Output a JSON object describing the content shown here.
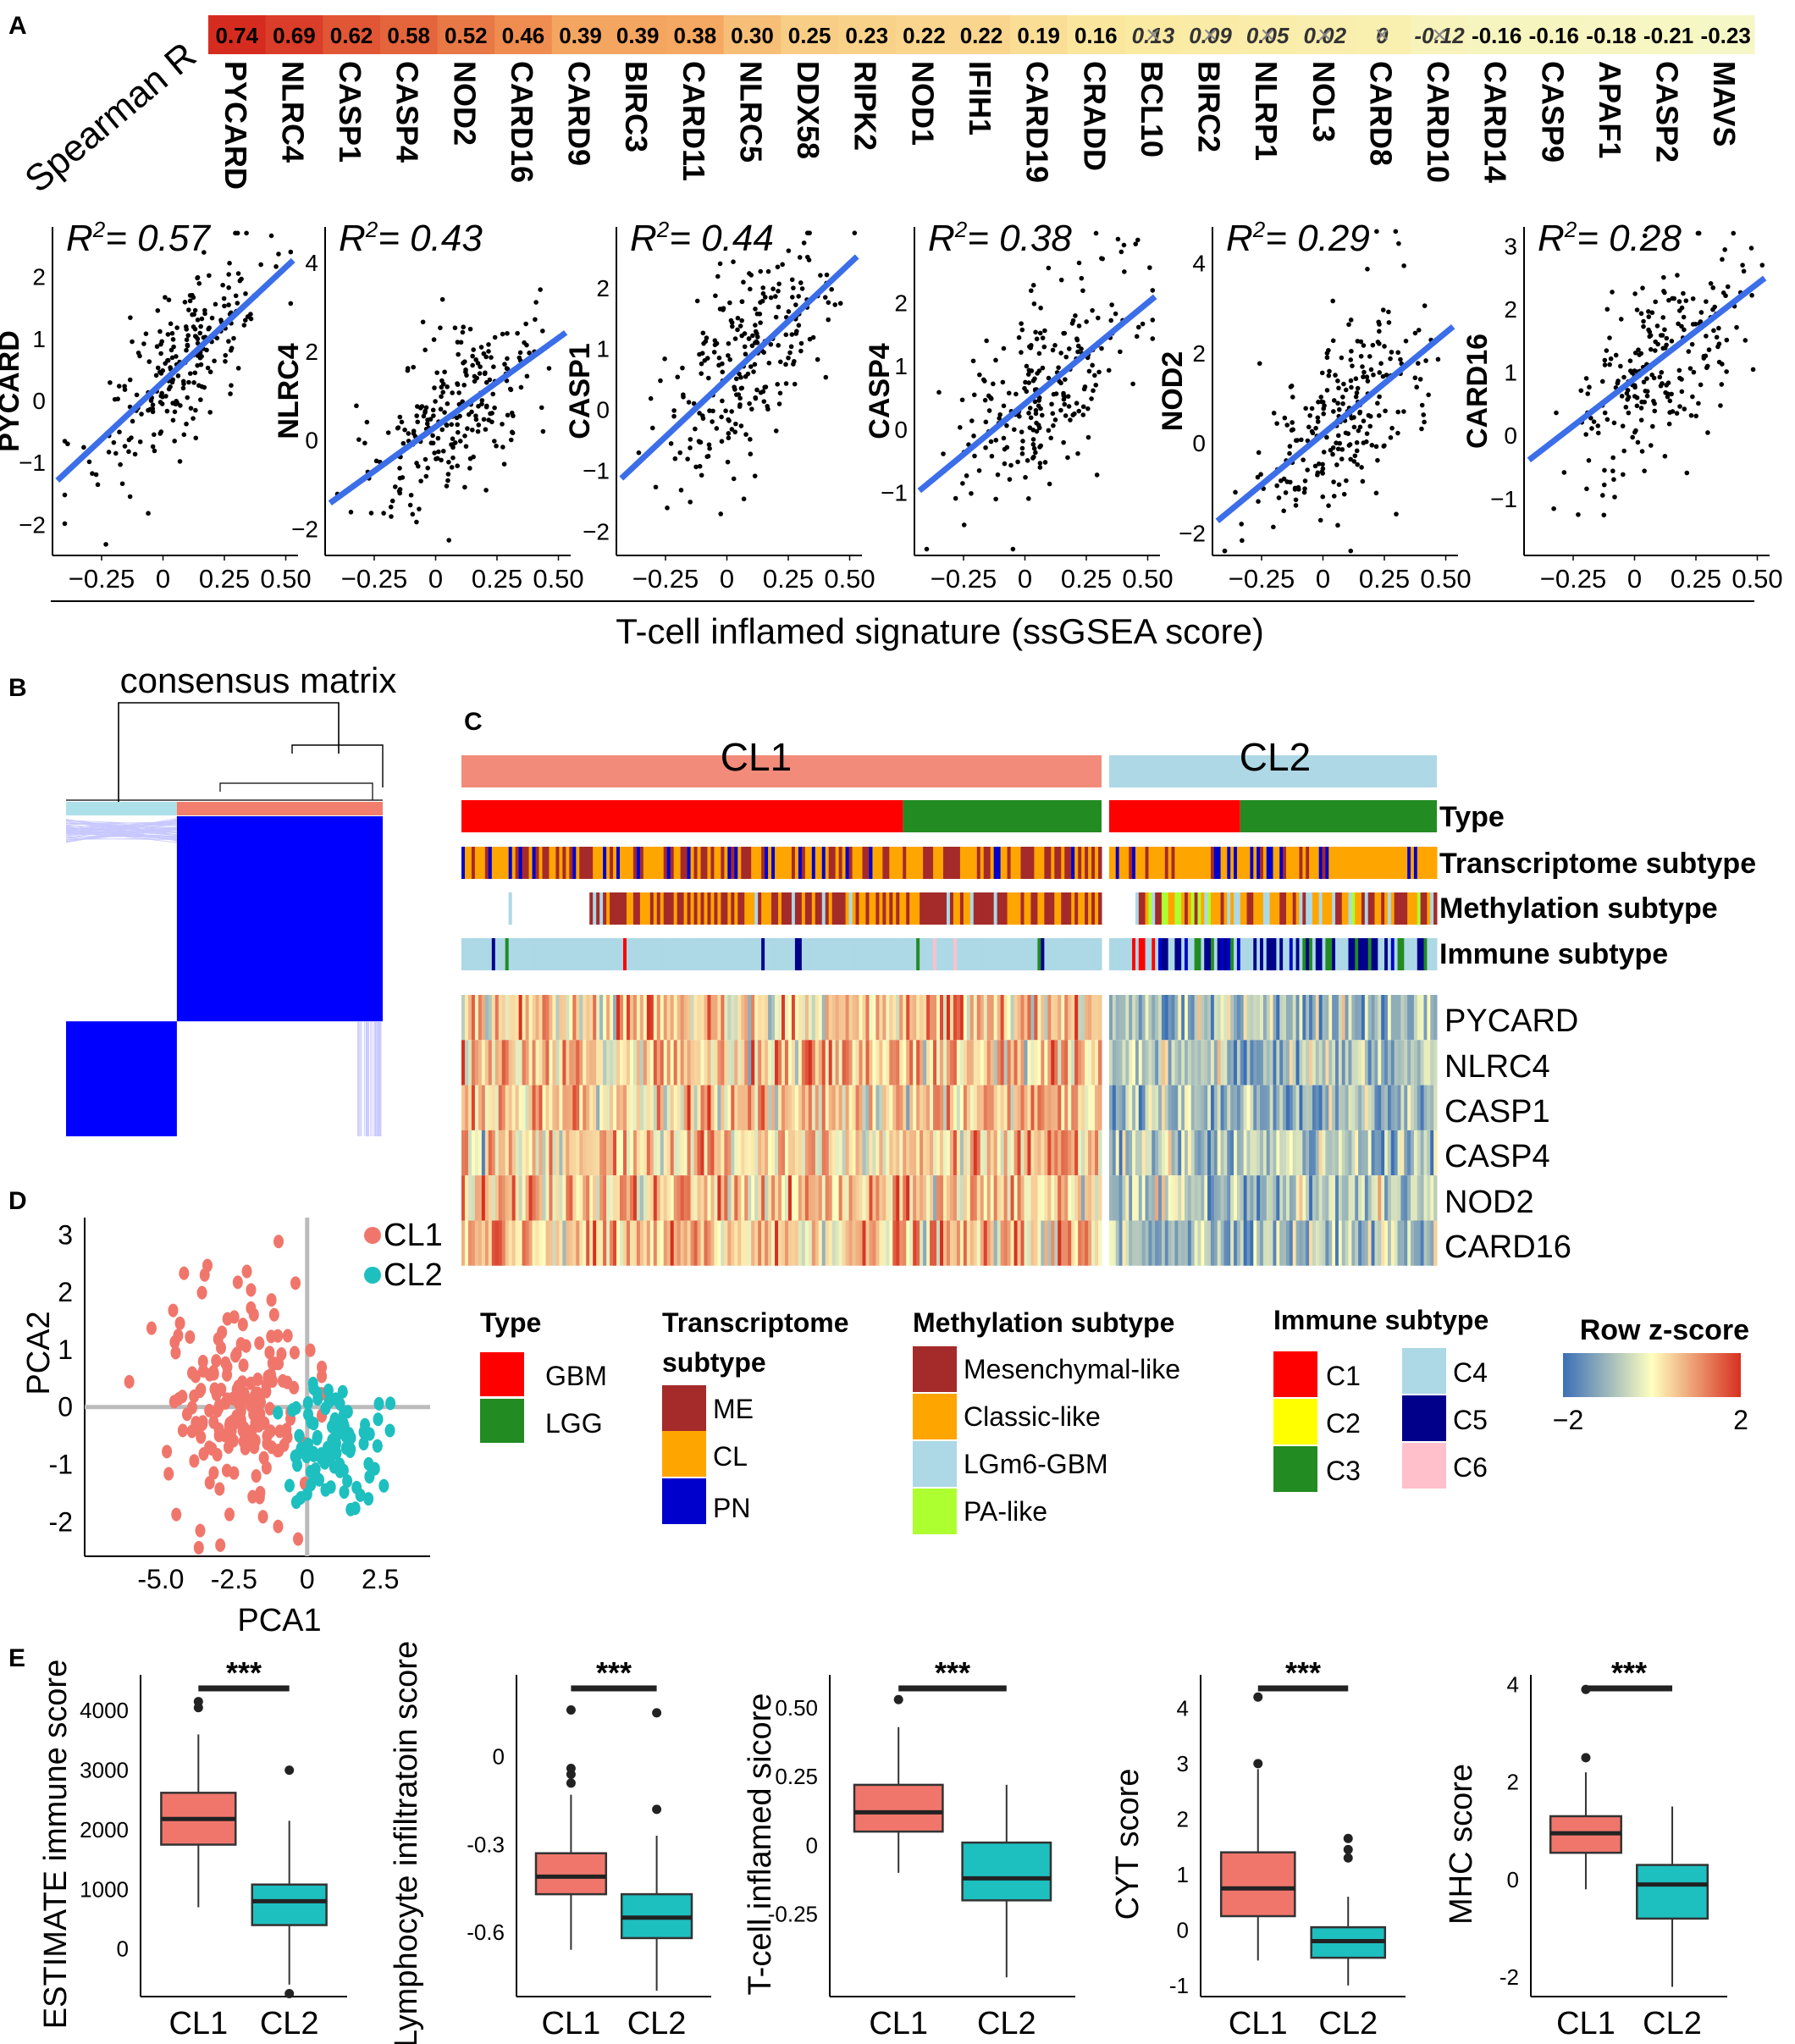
{
  "panel_labels": [
    "A",
    "B",
    "C",
    "D",
    "E"
  ],
  "chart_data": [
    {
      "id": "A-spearman",
      "type": "heatmap",
      "row_label": "Spearman R",
      "genes": [
        "PYCARD",
        "NLRC4",
        "CASP1",
        "CASP4",
        "NOD2",
        "CARD16",
        "CARD9",
        "BIRC3",
        "CARD11",
        "NLRC5",
        "DDX58",
        "RIPK2",
        "NOD1",
        "IFIH1",
        "CARD19",
        "CRADD",
        "BCL10",
        "BIRC2",
        "NLRP1",
        "NOL3",
        "CARD8",
        "CARD10",
        "CARD14",
        "CASP9",
        "APAF1",
        "CASP2",
        "MAVS"
      ],
      "values": [
        0.74,
        0.69,
        0.62,
        0.58,
        0.52,
        0.46,
        0.39,
        0.39,
        0.38,
        0.3,
        0.25,
        0.23,
        0.22,
        0.22,
        0.19,
        0.16,
        0.13,
        0.09,
        0.05,
        0.02,
        0,
        -0.12,
        -0.16,
        -0.16,
        -0.18,
        -0.21,
        -0.23
      ],
      "value_labels": [
        "0.74",
        "0.69",
        "0.62",
        "0.58",
        "0.52",
        "0.46",
        "0.39",
        "0.39",
        "0.38",
        "0.30",
        "0.25",
        "0.23",
        "0.22",
        "0.22",
        "0.19",
        "0.16",
        "0.13",
        "0.09",
        "0.05",
        "0.02",
        "0",
        "-0.12",
        "-0.16",
        "-0.16",
        "-0.18",
        "-0.21",
        "-0.23"
      ],
      "nonsignificant": [
        "BCL10",
        "BIRC2",
        "NLRP1",
        "NOL3",
        "CARD8",
        "CARD10"
      ]
    },
    {
      "id": "A-scatter",
      "type": "scatter",
      "shared_xlabel": "T-cell inflamed signature (ssGSEA score)",
      "xlim": [
        -0.45,
        0.55
      ],
      "xticks": [
        -0.25,
        0,
        0.25,
        0.5
      ],
      "xtick_labels": [
        "−0.25",
        "0",
        "0.25",
        "0.50"
      ],
      "panels": [
        {
          "gene": "PYCARD",
          "r2_label": "0.57",
          "ylim": [
            -2.5,
            2.8
          ],
          "yticks": [
            -2,
            -1,
            0,
            1,
            2
          ],
          "ytick_labels": [
            "−2",
            "−1",
            "0",
            "1",
            "2"
          ],
          "fit": {
            "intercept": 0.3,
            "slope": 3.7
          },
          "sd": 0.65,
          "n": 240
        },
        {
          "gene": "NLRC4",
          "r2_label": "0.43",
          "ylim": [
            -2.6,
            4.8
          ],
          "yticks": [
            -2,
            0,
            2,
            4
          ],
          "ytick_labels": [
            "−2",
            "0",
            "2",
            "4"
          ],
          "fit": {
            "intercept": 0.3,
            "slope": 4.0
          },
          "sd": 0.85,
          "n": 240
        },
        {
          "gene": "CASP1",
          "r2_label": "0.44",
          "ylim": [
            -2.4,
            3.0
          ],
          "yticks": [
            -2,
            -1,
            0,
            1,
            2
          ],
          "ytick_labels": [
            "−2",
            "−1",
            "0",
            "1",
            "2"
          ],
          "fit": {
            "intercept": 0.5,
            "slope": 3.8
          },
          "sd": 0.8,
          "n": 240
        },
        {
          "gene": "CASP4",
          "r2_label": "0.38",
          "ylim": [
            -2.0,
            3.2
          ],
          "yticks": [
            -1,
            0,
            1,
            2
          ],
          "ytick_labels": [
            "−1",
            "0",
            "1",
            "2"
          ],
          "fit": {
            "intercept": 0.4,
            "slope": 3.2
          },
          "sd": 0.75,
          "n": 240
        },
        {
          "gene": "NOD2",
          "r2_label": "0.29",
          "ylim": [
            -2.5,
            4.8
          ],
          "yticks": [
            -2,
            0,
            2,
            4
          ],
          "ytick_labels": [
            "−2",
            "0",
            "2",
            "4"
          ],
          "fit": {
            "intercept": 0.2,
            "slope": 4.5
          },
          "sd": 1.0,
          "n": 240
        },
        {
          "gene": "CARD16",
          "r2_label": "0.28",
          "ylim": [
            -1.9,
            3.3
          ],
          "yticks": [
            -1,
            0,
            1,
            2,
            3
          ],
          "ytick_labels": [
            "−1",
            "0",
            "1",
            "2",
            "3"
          ],
          "fit": {
            "intercept": 0.9,
            "slope": 3.0
          },
          "sd": 0.8,
          "n": 240
        }
      ]
    },
    {
      "id": "B-consensus",
      "type": "heatmap",
      "title": "consensus matrix",
      "clusters": [
        {
          "name": "CL1",
          "fraction": 0.65,
          "color": "#f27e6e"
        },
        {
          "name": "CL2",
          "fraction": 0.35,
          "color": "#aee0ea"
        }
      ]
    },
    {
      "id": "C-heatmap",
      "type": "heatmap",
      "groups": [
        {
          "name": "CL1",
          "samples": 190,
          "color": "#f28b7a"
        },
        {
          "name": "CL2",
          "samples": 100,
          "color": "#aed8e6"
        }
      ],
      "annotation_tracks": [
        "Type",
        "Transcriptome subtype",
        "Methylation subtype",
        "Immune subtype"
      ],
      "type_split": {
        "CL1_GBM_fraction": 0.69,
        "CL2_GBM_fraction": 0.4
      },
      "genes": [
        "PYCARD",
        "NLRC4",
        "CASP1",
        "CASP4",
        "NOD2",
        "CARD16"
      ],
      "scale": {
        "title": "Row z-score",
        "min": -2,
        "max": 2,
        "min_label": "−2",
        "max_label": "2",
        "colors": [
          "#3b6fb6",
          "#ffffbf",
          "#d7301f"
        ]
      }
    },
    {
      "id": "D-pca",
      "type": "scatter",
      "xlabel": "PCA1",
      "ylabel": "PCA2",
      "xlim": [
        -7.6,
        4.2
      ],
      "ylim": [
        -2.6,
        3.3
      ],
      "xticks": [
        -5,
        -2.5,
        0,
        2.5
      ],
      "xtick_labels": [
        "-5.0",
        "-2.5",
        "0",
        "2.5"
      ],
      "yticks": [
        -2,
        -1,
        0,
        1,
        2,
        3
      ],
      "ytick_labels": [
        "-2",
        "-1",
        "0",
        "1",
        "2",
        "3"
      ],
      "series": [
        {
          "name": "CL1",
          "color": "#f0766c",
          "center": [
            -2.2,
            0.1
          ],
          "spread": [
            1.3,
            1.0
          ],
          "n": 190
        },
        {
          "name": "CL2",
          "color": "#1ebfbf",
          "center": [
            0.8,
            -0.6
          ],
          "spread": [
            1.0,
            0.6
          ],
          "n": 100
        }
      ]
    },
    {
      "id": "E-boxplots",
      "type": "box",
      "categories": [
        "CL1",
        "CL2"
      ],
      "colors": [
        "#f0766c",
        "#1ebfbf"
      ],
      "significance": "***",
      "panels": [
        {
          "ylabel": "ESTIMATE immune score",
          "ylim": [
            -800,
            4600
          ],
          "yticks": [
            0,
            1000,
            2000,
            3000,
            4000
          ],
          "ytick_labels": [
            "0",
            "1000",
            "2000",
            "3000",
            "4000"
          ],
          "boxes": [
            {
              "q1": 1750,
              "median": 2180,
              "q3": 2620,
              "low": 700,
              "high": 3600,
              "outliers": [
                4050,
                4150
              ]
            },
            {
              "q1": 400,
              "median": 800,
              "q3": 1080,
              "low": -600,
              "high": 2150,
              "outliers": [
                3000,
                -750
              ]
            }
          ]
        },
        {
          "ylabel": "Lymphocyte infiltratoin score",
          "ylim": [
            -0.82,
            0.28
          ],
          "yticks": [
            -0.6,
            -0.3,
            0
          ],
          "ytick_labels": [
            "-0.6",
            "-0.3",
            "0"
          ],
          "boxes": [
            {
              "q1": -0.47,
              "median": -0.41,
              "q3": -0.33,
              "low": -0.66,
              "high": -0.13,
              "outliers": [
                -0.06,
                -0.04,
                -0.09,
                0.16
              ]
            },
            {
              "q1": -0.62,
              "median": -0.55,
              "q3": -0.47,
              "low": -0.8,
              "high": -0.27,
              "outliers": [
                -0.18,
                0.15
              ]
            }
          ]
        },
        {
          "ylabel": "T-cell inflamed sicore",
          "ylim": [
            -0.55,
            0.62
          ],
          "yticks": [
            -0.25,
            0,
            0.25,
            0.5
          ],
          "ytick_labels": [
            "-0.25",
            "0",
            "0.25",
            "0.50"
          ],
          "boxes": [
            {
              "q1": 0.05,
              "median": 0.12,
              "q3": 0.22,
              "low": -0.1,
              "high": 0.43,
              "outliers": [
                0.53
              ]
            },
            {
              "q1": -0.2,
              "median": -0.12,
              "q3": 0.01,
              "low": -0.48,
              "high": 0.22,
              "outliers": []
            }
          ]
        },
        {
          "ylabel": "CYT score",
          "ylim": [
            -1.2,
            4.6
          ],
          "yticks": [
            -1,
            0,
            1,
            2,
            3,
            4
          ],
          "ytick_labels": [
            "-1",
            "0",
            "1",
            "2",
            "3",
            "4"
          ],
          "boxes": [
            {
              "q1": 0.25,
              "median": 0.75,
              "q3": 1.4,
              "low": -0.55,
              "high": 2.9,
              "outliers": [
                3.0,
                4.2
              ]
            },
            {
              "q1": -0.5,
              "median": -0.2,
              "q3": 0.05,
              "low": -1.0,
              "high": 0.6,
              "outliers": [
                1.3,
                1.45,
                1.65
              ]
            }
          ]
        },
        {
          "ylabel": "MHC score",
          "ylim": [
            -2.4,
            4.2
          ],
          "yticks": [
            -2,
            0,
            2,
            4
          ],
          "ytick_labels": [
            "-2",
            "0",
            "2",
            "4"
          ],
          "boxes": [
            {
              "q1": 0.55,
              "median": 0.95,
              "q3": 1.3,
              "low": -0.2,
              "high": 2.2,
              "outliers": [
                2.5,
                3.9
              ]
            },
            {
              "q1": -0.8,
              "median": -0.1,
              "q3": 0.3,
              "low": -2.2,
              "high": 1.5,
              "outliers": []
            }
          ]
        }
      ]
    }
  ],
  "legends": {
    "type": {
      "title": "Type",
      "items": [
        {
          "label": "GBM",
          "color": "#ff0000"
        },
        {
          "label": "LGG",
          "color": "#228b22"
        }
      ]
    },
    "transcriptome": {
      "title_line1": "Transcriptome",
      "title_line2": "subtype",
      "items": [
        {
          "label": "ME",
          "color": "#a52a2a"
        },
        {
          "label": "CL",
          "color": "#ffa500"
        },
        {
          "label": "PN",
          "color": "#0000cd"
        }
      ]
    },
    "methylation": {
      "title": "Methylation subtype",
      "items": [
        {
          "label": "Mesenchymal-like",
          "color": "#a52a2a"
        },
        {
          "label": "Classic-like",
          "color": "#ffa500"
        },
        {
          "label": "LGm6-GBM",
          "color": "#add8e6"
        },
        {
          "label": "PA-like",
          "color": "#adff2f"
        }
      ]
    },
    "immune": {
      "title": "Immune subtype",
      "items": [
        {
          "label": "C1",
          "color": "#ff0000"
        },
        {
          "label": "C2",
          "color": "#ffff00"
        },
        {
          "label": "C3",
          "color": "#228b22"
        },
        {
          "label": "C4",
          "color": "#add8e6"
        },
        {
          "label": "C5",
          "color": "#00008b"
        },
        {
          "label": "C6",
          "color": "#ffc0cb"
        }
      ]
    }
  }
}
